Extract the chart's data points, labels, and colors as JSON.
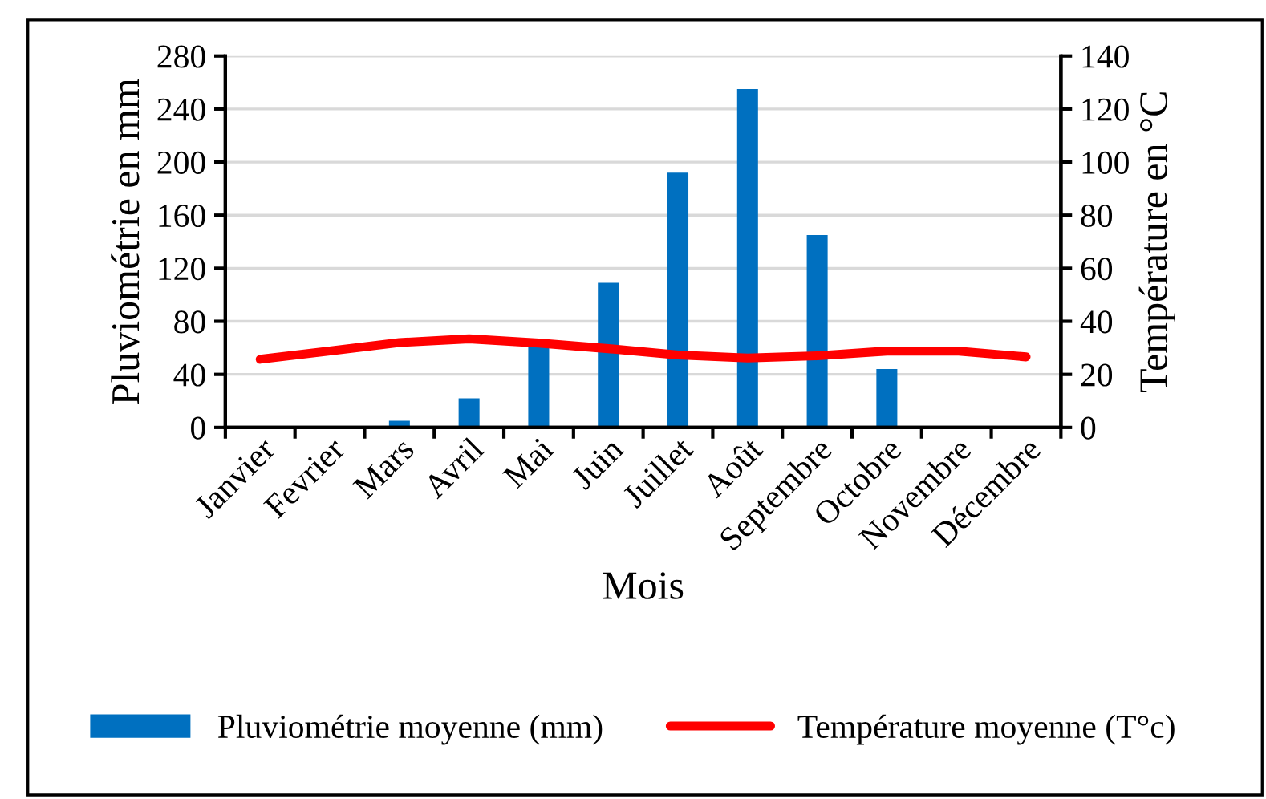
{
  "chart_data": {
    "type": "bar",
    "xlabel": "Mois",
    "ylabel": "Pluviométrie en mm",
    "y2label": "Température en °C",
    "categories": [
      "Janvier",
      "Fevrier",
      "Mars",
      "Avril",
      "Mai",
      "Juin",
      "Juillet",
      "Août",
      "Septembre",
      "Octobre",
      "Novembre",
      "Décembre"
    ],
    "series": [
      {
        "name": "Pluviométrie moyenne (mm)",
        "color": "#0070c0",
        "values": [
          0,
          0,
          5,
          22,
          62,
          109,
          192,
          255,
          145,
          44,
          null,
          0
        ]
      },
      {
        "name": "Température moyenne (T°c)",
        "type": "line",
        "axis": "y2",
        "color": "#ff0000",
        "values": [
          25.7,
          28.8,
          32,
          33.4,
          31.8,
          29.7,
          27.3,
          26.2,
          27,
          28.8,
          28.8,
          26.6
        ]
      }
    ],
    "ylim": [
      0,
      280
    ],
    "yticks": [
      0,
      40,
      80,
      120,
      160,
      200,
      240,
      280
    ],
    "y2lim": [
      0,
      140
    ],
    "y2ticks": [
      0,
      20,
      40,
      60,
      80,
      100,
      120,
      140
    ],
    "grid": "y",
    "legend": "bottom",
    "marker": "none"
  }
}
